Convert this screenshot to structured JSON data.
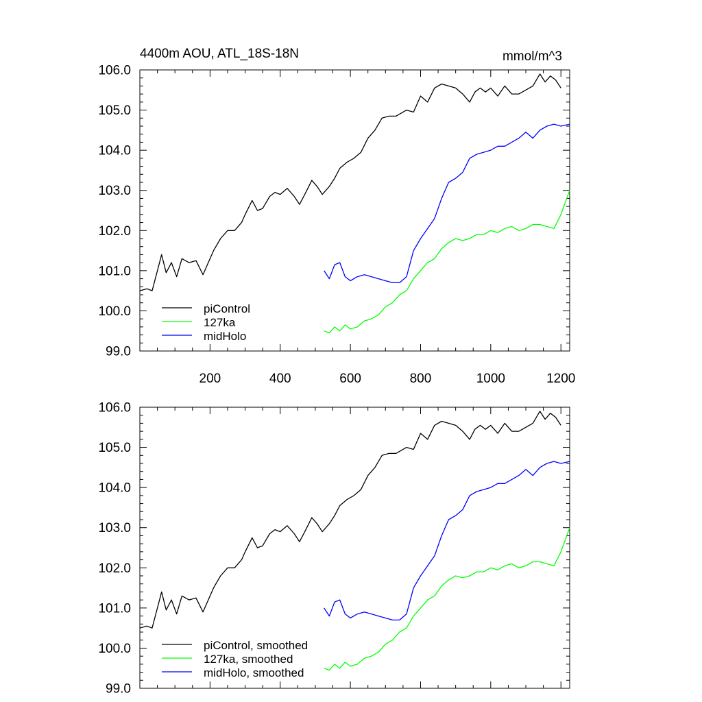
{
  "chart_data": [
    {
      "type": "line",
      "title": "4400m AOU, ATL_18S-18N",
      "units": "mmol/m^3",
      "xlim": [
        0,
        1225
      ],
      "ylim": [
        99.0,
        106.0
      ],
      "xticks": [
        200,
        400,
        600,
        800,
        1000,
        1200
      ],
      "xticklabels": [
        "200",
        "400",
        "600",
        "800",
        "1000",
        "1200"
      ],
      "yticks": [
        99,
        100,
        101,
        102,
        103,
        104,
        105,
        106
      ],
      "yticklabels": [
        "99.0",
        "100.0",
        "101.0",
        "102.0",
        "103.0",
        "104.0",
        "105.0",
        "106.0"
      ],
      "legend_position": "bottom-left",
      "series": [
        {
          "name": "piControl",
          "color": "#000000",
          "x": [
            0,
            20,
            35,
            50,
            62,
            75,
            90,
            105,
            120,
            140,
            160,
            180,
            195,
            210,
            230,
            250,
            270,
            290,
            300,
            320,
            335,
            350,
            370,
            385,
            400,
            420,
            440,
            455,
            470,
            490,
            505,
            520,
            540,
            555,
            570,
            590,
            610,
            630,
            650,
            670,
            690,
            710,
            730,
            760,
            780,
            800,
            820,
            840,
            860,
            880,
            900,
            920,
            940,
            955,
            970,
            985,
            1000,
            1020,
            1040,
            1060,
            1080,
            1100,
            1120,
            1140,
            1155,
            1170,
            1185,
            1200
          ],
          "values": [
            100.5,
            100.55,
            100.5,
            101.0,
            101.4,
            100.95,
            101.2,
            100.85,
            101.3,
            101.2,
            101.25,
            100.9,
            101.2,
            101.5,
            101.8,
            102.0,
            102.0,
            102.2,
            102.4,
            102.75,
            102.5,
            102.55,
            102.85,
            102.95,
            102.9,
            103.05,
            102.85,
            102.65,
            102.9,
            103.25,
            103.1,
            102.9,
            103.1,
            103.3,
            103.55,
            103.7,
            103.8,
            103.95,
            104.3,
            104.5,
            104.8,
            104.85,
            104.85,
            105.0,
            104.95,
            105.35,
            105.2,
            105.55,
            105.65,
            105.6,
            105.55,
            105.4,
            105.2,
            105.45,
            105.55,
            105.45,
            105.55,
            105.35,
            105.6,
            105.4,
            105.4,
            105.5,
            105.6,
            105.9,
            105.7,
            105.85,
            105.75,
            105.55
          ]
        },
        {
          "name": "127ka",
          "color": "#00ff00",
          "x": [
            525,
            540,
            555,
            570,
            585,
            600,
            620,
            640,
            660,
            680,
            700,
            720,
            740,
            760,
            780,
            800,
            820,
            840,
            860,
            880,
            900,
            920,
            940,
            960,
            980,
            1000,
            1020,
            1040,
            1060,
            1080,
            1100,
            1120,
            1140,
            1160,
            1180,
            1200,
            1225
          ],
          "values": [
            99.5,
            99.45,
            99.6,
            99.5,
            99.65,
            99.55,
            99.6,
            99.75,
            99.8,
            99.9,
            100.1,
            100.2,
            100.4,
            100.5,
            100.8,
            101.0,
            101.2,
            101.3,
            101.55,
            101.7,
            101.8,
            101.75,
            101.8,
            101.9,
            101.9,
            102.0,
            101.95,
            102.05,
            102.1,
            102.0,
            102.05,
            102.15,
            102.15,
            102.1,
            102.05,
            102.4,
            103.0
          ]
        },
        {
          "name": "midHolo",
          "color": "#0000ff",
          "x": [
            525,
            540,
            555,
            570,
            585,
            600,
            620,
            640,
            660,
            680,
            700,
            720,
            740,
            760,
            780,
            800,
            820,
            840,
            860,
            880,
            900,
            920,
            940,
            960,
            980,
            1000,
            1020,
            1040,
            1060,
            1080,
            1100,
            1120,
            1140,
            1160,
            1180,
            1200,
            1225
          ],
          "values": [
            101.0,
            100.8,
            101.15,
            101.2,
            100.85,
            100.75,
            100.85,
            100.9,
            100.85,
            100.8,
            100.75,
            100.7,
            100.7,
            100.85,
            101.5,
            101.8,
            102.05,
            102.3,
            102.8,
            103.2,
            103.3,
            103.45,
            103.8,
            103.9,
            103.95,
            104.0,
            104.1,
            104.1,
            104.2,
            104.3,
            104.45,
            104.3,
            104.5,
            104.6,
            104.65,
            104.6,
            104.65
          ]
        }
      ],
      "legend": [
        "piControl",
        "127ka",
        "midHolo"
      ]
    },
    {
      "type": "line",
      "title": "",
      "xlim": [
        0,
        1225
      ],
      "ylim": [
        99.0,
        106.0
      ],
      "xticks": [
        200,
        400,
        600,
        800,
        1000,
        1200
      ],
      "yticks": [
        99,
        100,
        101,
        102,
        103,
        104,
        105,
        106
      ],
      "yticklabels": [
        "99.0",
        "100.0",
        "101.0",
        "102.0",
        "103.0",
        "104.0",
        "105.0",
        "106.0"
      ],
      "legend_position": "bottom-left",
      "series": [
        {
          "name": "piControl, smoothed",
          "color": "#000000",
          "x": [
            0,
            20,
            35,
            50,
            62,
            75,
            90,
            105,
            120,
            140,
            160,
            180,
            195,
            210,
            230,
            250,
            270,
            290,
            300,
            320,
            335,
            350,
            370,
            385,
            400,
            420,
            440,
            455,
            470,
            490,
            505,
            520,
            540,
            555,
            570,
            590,
            610,
            630,
            650,
            670,
            690,
            710,
            730,
            760,
            780,
            800,
            820,
            840,
            860,
            880,
            900,
            920,
            940,
            955,
            970,
            985,
            1000,
            1020,
            1040,
            1060,
            1080,
            1100,
            1120,
            1140,
            1155,
            1170,
            1185,
            1200
          ],
          "values": [
            100.5,
            100.55,
            100.5,
            101.0,
            101.4,
            100.95,
            101.2,
            100.85,
            101.3,
            101.2,
            101.25,
            100.9,
            101.2,
            101.5,
            101.8,
            102.0,
            102.0,
            102.2,
            102.4,
            102.75,
            102.5,
            102.55,
            102.85,
            102.95,
            102.9,
            103.05,
            102.85,
            102.65,
            102.9,
            103.25,
            103.1,
            102.9,
            103.1,
            103.3,
            103.55,
            103.7,
            103.8,
            103.95,
            104.3,
            104.5,
            104.8,
            104.85,
            104.85,
            105.0,
            104.95,
            105.35,
            105.2,
            105.55,
            105.65,
            105.6,
            105.55,
            105.4,
            105.2,
            105.45,
            105.55,
            105.45,
            105.55,
            105.35,
            105.6,
            105.4,
            105.4,
            105.5,
            105.6,
            105.9,
            105.7,
            105.85,
            105.75,
            105.55
          ]
        },
        {
          "name": "127ka, smoothed",
          "color": "#00ff00",
          "x": [
            525,
            540,
            555,
            570,
            585,
            600,
            620,
            640,
            660,
            680,
            700,
            720,
            740,
            760,
            780,
            800,
            820,
            840,
            860,
            880,
            900,
            920,
            940,
            960,
            980,
            1000,
            1020,
            1040,
            1060,
            1080,
            1100,
            1120,
            1140,
            1160,
            1180,
            1200,
            1225
          ],
          "values": [
            99.5,
            99.45,
            99.6,
            99.5,
            99.65,
            99.55,
            99.6,
            99.75,
            99.8,
            99.9,
            100.1,
            100.2,
            100.4,
            100.5,
            100.8,
            101.0,
            101.2,
            101.3,
            101.55,
            101.7,
            101.8,
            101.75,
            101.8,
            101.9,
            101.9,
            102.0,
            101.95,
            102.05,
            102.1,
            102.0,
            102.05,
            102.15,
            102.15,
            102.1,
            102.05,
            102.4,
            103.0
          ]
        },
        {
          "name": "midHolo, smoothed",
          "color": "#0000ff",
          "x": [
            525,
            540,
            555,
            570,
            585,
            600,
            620,
            640,
            660,
            680,
            700,
            720,
            740,
            760,
            780,
            800,
            820,
            840,
            860,
            880,
            900,
            920,
            940,
            960,
            980,
            1000,
            1020,
            1040,
            1060,
            1080,
            1100,
            1120,
            1140,
            1160,
            1180,
            1200,
            1225
          ],
          "values": [
            101.0,
            100.8,
            101.15,
            101.2,
            100.85,
            100.75,
            100.85,
            100.9,
            100.85,
            100.8,
            100.75,
            100.7,
            100.7,
            100.85,
            101.5,
            101.8,
            102.05,
            102.3,
            102.8,
            103.2,
            103.3,
            103.45,
            103.8,
            103.9,
            103.95,
            104.0,
            104.1,
            104.1,
            104.2,
            104.3,
            104.45,
            104.3,
            104.5,
            104.6,
            104.65,
            104.6,
            104.65
          ]
        }
      ],
      "legend": [
        "piControl, smoothed",
        "127ka, smoothed",
        "midHolo, smoothed"
      ]
    }
  ]
}
